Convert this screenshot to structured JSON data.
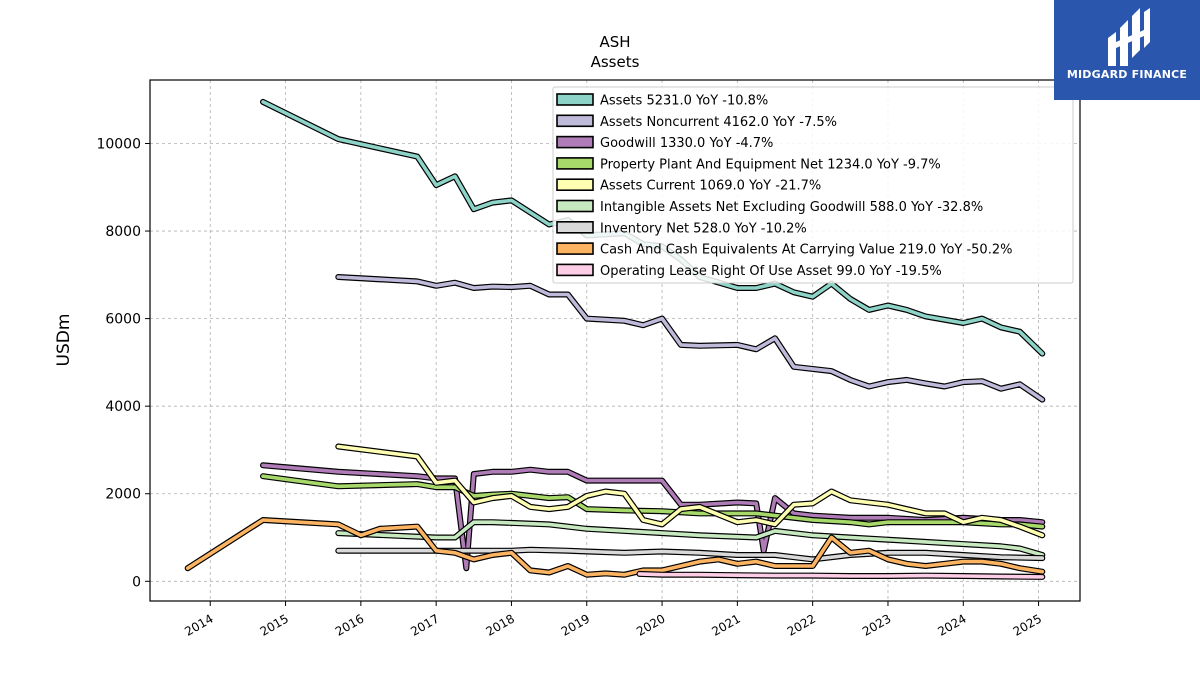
{
  "chart_data": {
    "type": "line",
    "title": "ASH",
    "subtitle": "Assets",
    "ylabel": "USDm",
    "xlabel": "",
    "ylim": [
      -450,
      11450
    ],
    "xlim": [
      2013.2,
      2025.55
    ],
    "yticks": [
      0,
      2000,
      4000,
      6000,
      8000,
      10000
    ],
    "xticks": [
      2014,
      2015,
      2016,
      2017,
      2018,
      2019,
      2020,
      2021,
      2022,
      2023,
      2024,
      2025
    ],
    "xtick_labels": [
      "2014",
      "2015",
      "2016",
      "2017",
      "2018",
      "2019",
      "2020",
      "2021",
      "2022",
      "2023",
      "2024",
      "2025"
    ],
    "grid": true,
    "legend_position": "top-right",
    "series": [
      {
        "name": "Assets",
        "legend": "Assets  5231.0 YoY -10.8%",
        "color": "#8dd3c7",
        "points": [
          [
            2014.7,
            10950
          ],
          [
            2015.7,
            10100
          ],
          [
            2016.75,
            9700
          ],
          [
            2017.0,
            9050
          ],
          [
            2017.25,
            9250
          ],
          [
            2017.5,
            8500
          ],
          [
            2017.75,
            8650
          ],
          [
            2018.0,
            8700
          ],
          [
            2018.5,
            8150
          ],
          [
            2018.75,
            8250
          ],
          [
            2019.0,
            7900
          ],
          [
            2019.5,
            7950
          ],
          [
            2019.75,
            7700
          ],
          [
            2020.0,
            7650
          ],
          [
            2020.25,
            7350
          ],
          [
            2020.5,
            6950
          ],
          [
            2021.0,
            6700
          ],
          [
            2021.25,
            6700
          ],
          [
            2021.5,
            6800
          ],
          [
            2021.75,
            6600
          ],
          [
            2022.0,
            6500
          ],
          [
            2022.25,
            6800
          ],
          [
            2022.5,
            6450
          ],
          [
            2022.75,
            6200
          ],
          [
            2023.0,
            6300
          ],
          [
            2023.25,
            6200
          ],
          [
            2023.5,
            6050
          ],
          [
            2024.0,
            5900
          ],
          [
            2024.25,
            6000
          ],
          [
            2024.5,
            5800
          ],
          [
            2024.75,
            5700
          ],
          [
            2025.05,
            5200
          ]
        ]
      },
      {
        "name": "Assets Noncurrent",
        "legend": "Assets Noncurrent  4162.0 YoY -7.5%",
        "color": "#bebada",
        "points": [
          [
            2015.7,
            6950
          ],
          [
            2016.75,
            6850
          ],
          [
            2017.0,
            6750
          ],
          [
            2017.25,
            6820
          ],
          [
            2017.5,
            6700
          ],
          [
            2017.75,
            6730
          ],
          [
            2018.0,
            6720
          ],
          [
            2018.25,
            6750
          ],
          [
            2018.5,
            6550
          ],
          [
            2018.75,
            6550
          ],
          [
            2019.0,
            6000
          ],
          [
            2019.5,
            5950
          ],
          [
            2019.75,
            5850
          ],
          [
            2020.0,
            6000
          ],
          [
            2020.25,
            5400
          ],
          [
            2020.5,
            5380
          ],
          [
            2021.0,
            5400
          ],
          [
            2021.25,
            5300
          ],
          [
            2021.5,
            5550
          ],
          [
            2021.75,
            4900
          ],
          [
            2022.25,
            4800
          ],
          [
            2022.5,
            4600
          ],
          [
            2022.75,
            4450
          ],
          [
            2023.0,
            4550
          ],
          [
            2023.25,
            4600
          ],
          [
            2023.5,
            4520
          ],
          [
            2023.75,
            4450
          ],
          [
            2024.0,
            4550
          ],
          [
            2024.25,
            4570
          ],
          [
            2024.5,
            4400
          ],
          [
            2024.75,
            4500
          ],
          [
            2025.05,
            4150
          ]
        ]
      },
      {
        "name": "Goodwill",
        "legend": "Goodwill  1330.0 YoY -4.7%",
        "color": "#b07cb8",
        "points": [
          [
            2014.7,
            2650
          ],
          [
            2015.7,
            2500
          ],
          [
            2016.75,
            2400
          ],
          [
            2017.0,
            2350
          ],
          [
            2017.25,
            2350
          ],
          [
            2017.4,
            300
          ],
          [
            2017.5,
            2450
          ],
          [
            2017.75,
            2500
          ],
          [
            2018.0,
            2500
          ],
          [
            2018.25,
            2550
          ],
          [
            2018.5,
            2500
          ],
          [
            2018.75,
            2500
          ],
          [
            2019.0,
            2300
          ],
          [
            2019.5,
            2300
          ],
          [
            2019.75,
            2300
          ],
          [
            2020.0,
            2300
          ],
          [
            2020.25,
            1750
          ],
          [
            2020.5,
            1750
          ],
          [
            2021.0,
            1800
          ],
          [
            2021.25,
            1780
          ],
          [
            2021.35,
            700
          ],
          [
            2021.5,
            1900
          ],
          [
            2021.75,
            1550
          ],
          [
            2022.0,
            1500
          ],
          [
            2022.5,
            1450
          ],
          [
            2023.0,
            1450
          ],
          [
            2023.5,
            1400
          ],
          [
            2024.0,
            1450
          ],
          [
            2024.5,
            1400
          ],
          [
            2024.75,
            1400
          ],
          [
            2025.05,
            1350
          ]
        ]
      },
      {
        "name": "Property Plant And Equipment Net",
        "legend": "Property Plant And Equipment Net  1234.0 YoY -9.7%",
        "color": "#a6d96a",
        "points": [
          [
            2014.7,
            2400
          ],
          [
            2015.7,
            2170
          ],
          [
            2016.75,
            2220
          ],
          [
            2017.0,
            2150
          ],
          [
            2017.25,
            2150
          ],
          [
            2017.5,
            1950
          ],
          [
            2017.75,
            1980
          ],
          [
            2018.0,
            2000
          ],
          [
            2018.25,
            1950
          ],
          [
            2018.5,
            1900
          ],
          [
            2018.75,
            1920
          ],
          [
            2019.0,
            1650
          ],
          [
            2019.5,
            1620
          ],
          [
            2020.0,
            1600
          ],
          [
            2020.5,
            1550
          ],
          [
            2021.0,
            1550
          ],
          [
            2021.25,
            1550
          ],
          [
            2021.5,
            1500
          ],
          [
            2022.0,
            1400
          ],
          [
            2022.5,
            1350
          ],
          [
            2022.75,
            1300
          ],
          [
            2023.0,
            1350
          ],
          [
            2023.5,
            1350
          ],
          [
            2024.0,
            1350
          ],
          [
            2024.5,
            1300
          ],
          [
            2024.75,
            1300
          ],
          [
            2025.05,
            1250
          ]
        ]
      },
      {
        "name": "Assets Current",
        "legend": "Assets Current  1069.0 YoY -21.7%",
        "color": "#ffffb3",
        "points": [
          [
            2015.7,
            3080
          ],
          [
            2016.75,
            2850
          ],
          [
            2017.0,
            2250
          ],
          [
            2017.25,
            2300
          ],
          [
            2017.5,
            1800
          ],
          [
            2017.75,
            1900
          ],
          [
            2018.0,
            1950
          ],
          [
            2018.25,
            1700
          ],
          [
            2018.5,
            1650
          ],
          [
            2018.75,
            1700
          ],
          [
            2019.0,
            1950
          ],
          [
            2019.25,
            2050
          ],
          [
            2019.5,
            2000
          ],
          [
            2019.75,
            1400
          ],
          [
            2020.0,
            1300
          ],
          [
            2020.25,
            1650
          ],
          [
            2020.5,
            1700
          ],
          [
            2021.0,
            1350
          ],
          [
            2021.25,
            1400
          ],
          [
            2021.5,
            1300
          ],
          [
            2021.75,
            1750
          ],
          [
            2022.0,
            1780
          ],
          [
            2022.25,
            2050
          ],
          [
            2022.5,
            1850
          ],
          [
            2023.0,
            1750
          ],
          [
            2023.25,
            1650
          ],
          [
            2023.5,
            1550
          ],
          [
            2023.75,
            1550
          ],
          [
            2024.0,
            1350
          ],
          [
            2024.25,
            1450
          ],
          [
            2024.5,
            1400
          ],
          [
            2024.75,
            1250
          ],
          [
            2025.05,
            1050
          ]
        ]
      },
      {
        "name": "Intangible Assets Net Excluding Goodwill",
        "legend": "Intangible Assets Net Excluding Goodwill  588.0 YoY -32.8%",
        "color": "#c7e9c0",
        "points": [
          [
            2015.7,
            1100
          ],
          [
            2017.0,
            1000
          ],
          [
            2017.25,
            1000
          ],
          [
            2017.5,
            1350
          ],
          [
            2017.75,
            1350
          ],
          [
            2018.5,
            1300
          ],
          [
            2019.0,
            1200
          ],
          [
            2019.5,
            1150
          ],
          [
            2020.0,
            1100
          ],
          [
            2020.5,
            1050
          ],
          [
            2021.25,
            1000
          ],
          [
            2021.5,
            1150
          ],
          [
            2022.0,
            1050
          ],
          [
            2022.5,
            1000
          ],
          [
            2023.0,
            950
          ],
          [
            2023.5,
            900
          ],
          [
            2024.0,
            850
          ],
          [
            2024.5,
            800
          ],
          [
            2024.75,
            750
          ],
          [
            2025.05,
            600
          ]
        ]
      },
      {
        "name": "Inventory Net",
        "legend": "Inventory Net  528.0 YoY -10.2%",
        "color": "#d9d9d9",
        "points": [
          [
            2015.7,
            700
          ],
          [
            2017.0,
            700
          ],
          [
            2017.5,
            700
          ],
          [
            2018.0,
            700
          ],
          [
            2018.25,
            720
          ],
          [
            2018.75,
            700
          ],
          [
            2019.0,
            680
          ],
          [
            2019.5,
            650
          ],
          [
            2020.0,
            680
          ],
          [
            2020.5,
            650
          ],
          [
            2021.0,
            600
          ],
          [
            2021.5,
            600
          ],
          [
            2021.75,
            550
          ],
          [
            2022.0,
            500
          ],
          [
            2022.5,
            600
          ],
          [
            2023.0,
            650
          ],
          [
            2023.25,
            650
          ],
          [
            2023.5,
            650
          ],
          [
            2024.0,
            600
          ],
          [
            2024.5,
            550
          ],
          [
            2025.05,
            530
          ]
        ]
      },
      {
        "name": "Cash And Cash Equivalents At Carrying Value",
        "legend": "Cash And Cash Equivalents At Carrying Value  219.0 YoY -50.2%",
        "color": "#fdb462",
        "points": [
          [
            2013.7,
            300
          ],
          [
            2014.7,
            1400
          ],
          [
            2015.7,
            1300
          ],
          [
            2016.0,
            1050
          ],
          [
            2016.25,
            1200
          ],
          [
            2016.75,
            1250
          ],
          [
            2017.0,
            700
          ],
          [
            2017.25,
            650
          ],
          [
            2017.5,
            500
          ],
          [
            2017.75,
            600
          ],
          [
            2018.0,
            650
          ],
          [
            2018.25,
            250
          ],
          [
            2018.5,
            200
          ],
          [
            2018.75,
            350
          ],
          [
            2019.0,
            150
          ],
          [
            2019.25,
            180
          ],
          [
            2019.5,
            150
          ],
          [
            2019.75,
            250
          ],
          [
            2020.0,
            250
          ],
          [
            2020.25,
            350
          ],
          [
            2020.5,
            450
          ],
          [
            2020.75,
            500
          ],
          [
            2021.0,
            400
          ],
          [
            2021.25,
            450
          ],
          [
            2021.5,
            350
          ],
          [
            2022.0,
            350
          ],
          [
            2022.25,
            1000
          ],
          [
            2022.5,
            650
          ],
          [
            2022.75,
            700
          ],
          [
            2023.0,
            500
          ],
          [
            2023.25,
            400
          ],
          [
            2023.5,
            350
          ],
          [
            2023.75,
            400
          ],
          [
            2024.0,
            450
          ],
          [
            2024.25,
            450
          ],
          [
            2024.5,
            400
          ],
          [
            2024.75,
            300
          ],
          [
            2025.05,
            220
          ]
        ]
      },
      {
        "name": "Operating Lease Right Of Use Asset",
        "legend": "Operating Lease Right Of Use Asset  99.0 YoY -19.5%",
        "color": "#fccde5",
        "points": [
          [
            2019.7,
            170
          ],
          [
            2020.0,
            150
          ],
          [
            2020.5,
            150
          ],
          [
            2021.0,
            140
          ],
          [
            2021.5,
            130
          ],
          [
            2022.0,
            130
          ],
          [
            2022.5,
            120
          ],
          [
            2023.0,
            120
          ],
          [
            2023.5,
            130
          ],
          [
            2024.0,
            120
          ],
          [
            2024.5,
            110
          ],
          [
            2025.05,
            100
          ]
        ]
      }
    ]
  },
  "logo": {
    "text": "MIDGARD FINANCE",
    "icon": "midgard-logo-icon",
    "color": "#2a56ad"
  }
}
